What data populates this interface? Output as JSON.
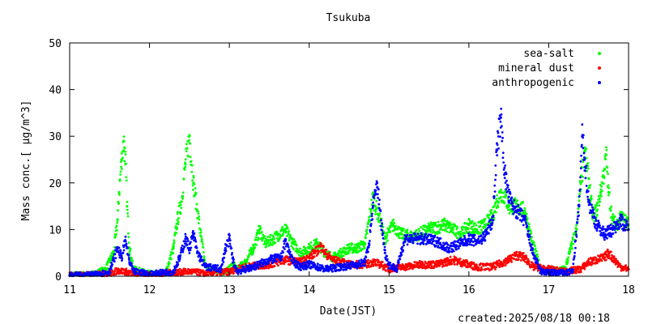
{
  "chart_data": {
    "type": "scatter",
    "title": "Tsukuba",
    "xlabel": "Date(JST)",
    "ylabel": "Mass conc.[ μg/m^3]",
    "xlim": [
      11,
      18
    ],
    "ylim": [
      0,
      50
    ],
    "x_ticks": [
      "11",
      "12",
      "13",
      "14",
      "15",
      "16",
      "17",
      "18"
    ],
    "y_ticks": [
      "0",
      "10",
      "20",
      "30",
      "40",
      "50"
    ],
    "grid": false,
    "legend_position": "top-right",
    "footer": "created:2025/08/18 00:18",
    "series": [
      {
        "name": "sea-salt",
        "color": "#00ff00",
        "x": [
          11.0,
          11.3,
          11.45,
          11.55,
          11.6,
          11.62,
          11.65,
          11.68,
          11.7,
          11.72,
          11.75,
          11.8,
          12.0,
          12.2,
          12.3,
          12.35,
          12.4,
          12.45,
          12.5,
          12.55,
          12.6,
          12.7,
          12.9,
          13.0,
          13.05,
          13.1,
          13.2,
          13.3,
          13.38,
          13.45,
          13.55,
          13.7,
          13.8,
          13.9,
          14.0,
          14.1,
          14.2,
          14.3,
          14.4,
          14.5,
          14.6,
          14.7,
          14.75,
          14.8,
          14.83,
          14.87,
          14.95,
          15.05,
          15.15,
          15.3,
          15.5,
          15.7,
          15.8,
          15.9,
          16.0,
          16.1,
          16.2,
          16.3,
          16.35,
          16.4,
          16.45,
          16.5,
          16.6,
          16.7,
          16.8,
          16.9,
          17.0,
          17.2,
          17.35,
          17.4,
          17.45,
          17.5,
          17.55,
          17.6,
          17.65,
          17.7,
          17.72,
          17.75,
          17.8,
          17.85,
          17.9,
          17.95,
          18.0
        ],
        "y": [
          0.3,
          0.4,
          1.5,
          5,
          12,
          18,
          25,
          29,
          24,
          15,
          6,
          1.5,
          0.5,
          0.6,
          6,
          12,
          16,
          24,
          30,
          20,
          14,
          2,
          0.8,
          1.5,
          2.5,
          1.5,
          3,
          6,
          10,
          7,
          8,
          10,
          7,
          5,
          6,
          7,
          5,
          4,
          5,
          6,
          6,
          7,
          12,
          17,
          15,
          13,
          8,
          11,
          9,
          8.5,
          10,
          11,
          10,
          9,
          11,
          10,
          11,
          13,
          16,
          18,
          17,
          15,
          15,
          14,
          7,
          1.5,
          1.2,
          1.5,
          10,
          20,
          27,
          21,
          13,
          14,
          18,
          23,
          26,
          18,
          12,
          11,
          13,
          12,
          11
        ]
      },
      {
        "name": "mineral dust",
        "color": "#ff0000",
        "x": [
          11.0,
          11.5,
          11.6,
          11.7,
          11.8,
          12.0,
          12.3,
          12.5,
          12.7,
          13.0,
          13.2,
          13.5,
          13.7,
          13.9,
          14.0,
          14.1,
          14.15,
          14.2,
          14.3,
          14.5,
          14.7,
          14.8,
          14.9,
          15.0,
          15.2,
          15.4,
          15.6,
          15.8,
          15.9,
          16.1,
          16.3,
          16.5,
          16.6,
          16.7,
          16.8,
          17.0,
          17.2,
          17.4,
          17.5,
          17.6,
          17.7,
          17.75,
          17.8,
          17.9,
          18.0
        ],
        "y": [
          0.2,
          0.5,
          1.2,
          1.0,
          0.4,
          0.3,
          0.8,
          1.0,
          0.6,
          1.0,
          2.0,
          2.5,
          3.5,
          3.0,
          4.0,
          5.5,
          6.5,
          5.0,
          3.5,
          2.5,
          2.5,
          3.0,
          2.5,
          1.5,
          2.0,
          2.5,
          2.5,
          3.5,
          3.0,
          2.0,
          2.0,
          3.5,
          4.5,
          4.0,
          2.0,
          1.5,
          1.0,
          1.5,
          3.0,
          3.5,
          4.0,
          5.0,
          4.0,
          2.0,
          1.5
        ]
      },
      {
        "name": "anthropogenic",
        "color": "#0000ff",
        "x": [
          11.0,
          11.3,
          11.5,
          11.55,
          11.6,
          11.65,
          11.7,
          11.75,
          11.8,
          12.0,
          12.3,
          12.38,
          12.45,
          12.5,
          12.55,
          12.6,
          12.7,
          12.9,
          12.95,
          13.0,
          13.05,
          13.1,
          13.3,
          13.5,
          13.65,
          13.7,
          13.8,
          13.9,
          14.0,
          14.1,
          14.2,
          14.4,
          14.6,
          14.7,
          14.75,
          14.8,
          14.85,
          14.9,
          14.95,
          15.0,
          15.1,
          15.15,
          15.2,
          15.4,
          15.6,
          15.75,
          15.9,
          16.0,
          16.1,
          16.2,
          16.3,
          16.35,
          16.4,
          16.45,
          16.5,
          16.55,
          16.6,
          16.7,
          16.8,
          16.9,
          17.0,
          17.2,
          17.3,
          17.38,
          17.42,
          17.45,
          17.5,
          17.6,
          17.7,
          17.8,
          17.9,
          18.0
        ],
        "y": [
          0.2,
          0.3,
          1.0,
          3.5,
          6.0,
          4.0,
          7.5,
          3.0,
          1.0,
          0.5,
          1.0,
          4.0,
          8.0,
          6.0,
          9.0,
          5.0,
          2.0,
          1.5,
          6.0,
          8.0,
          3.0,
          1.0,
          2.0,
          3.5,
          4.0,
          7.5,
          3.0,
          2.0,
          2.5,
          2.0,
          1.5,
          2.0,
          2.5,
          3.0,
          7.0,
          15.0,
          20.0,
          12.0,
          5.0,
          2.5,
          1.5,
          5.0,
          8.0,
          8.0,
          7.5,
          6.0,
          7.0,
          8.0,
          7.5,
          8.5,
          12.0,
          27.0,
          34.0,
          22.0,
          17.0,
          15.0,
          14.0,
          12.0,
          5.0,
          1.0,
          0.8,
          0.7,
          1.0,
          15.0,
          30.0,
          25.0,
          16.0,
          11.0,
          9.0,
          10.0,
          12.0,
          10.0
        ]
      }
    ]
  }
}
